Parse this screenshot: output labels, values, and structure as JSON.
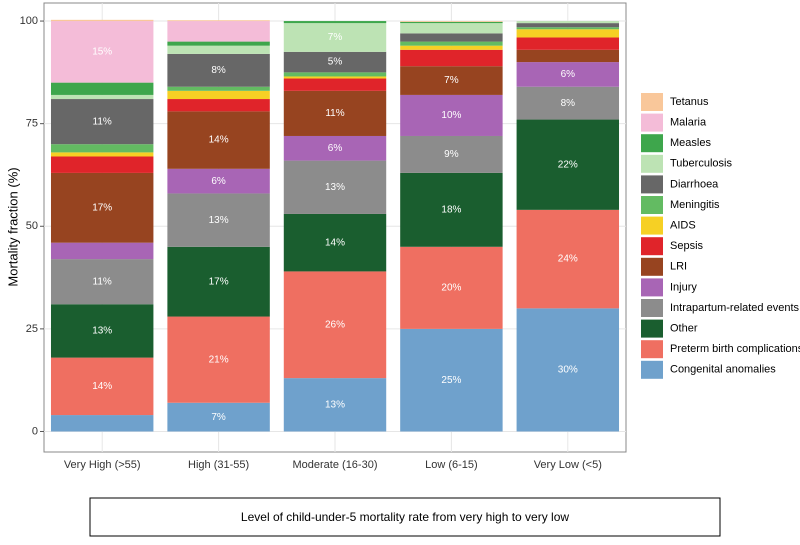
{
  "chart_data": {
    "type": "stacked_bar",
    "y_label": "Mortality fraction (%)",
    "x_label": "Level of child-under-5 mortality rate from very high to very low",
    "categories": [
      "Very High (>55)",
      "High (31-55)",
      "Moderate (16-30)",
      "Low (6-15)",
      "Very Low (<5)"
    ],
    "ylim": [
      -5,
      104.4
    ],
    "yticks": [
      0,
      25,
      50,
      75,
      100
    ],
    "grid": true,
    "legend": "right",
    "series": [
      {
        "name": "Congenital anomalies",
        "color": "#6fa1cc",
        "values": [
          4,
          7,
          13,
          25,
          30
        ],
        "value_labels": [
          null,
          "7%",
          "13%",
          "25%",
          "30%"
        ]
      },
      {
        "name": "Preterm birth complications",
        "color": "#ef6f61",
        "values": [
          14,
          21,
          26,
          20,
          24
        ],
        "value_labels": [
          "14%",
          "21%",
          "26%",
          "20%",
          "24%"
        ]
      },
      {
        "name": "Other",
        "color": "#1a5e2f",
        "values": [
          13,
          17,
          14,
          18,
          22
        ],
        "value_labels": [
          "13%",
          "17%",
          "14%",
          "18%",
          "22%"
        ]
      },
      {
        "name": "Intrapartum-related events",
        "color": "#8c8c8c",
        "values": [
          11,
          13,
          13,
          9,
          8
        ],
        "value_labels": [
          "11%",
          "13%",
          "13%",
          "9%",
          "8%"
        ]
      },
      {
        "name": "Injury",
        "color": "#a865b5",
        "values": [
          4,
          6,
          6,
          10,
          6
        ],
        "value_labels": [
          null,
          "6%",
          "6%",
          "10%",
          "6%"
        ]
      },
      {
        "name": "LRI",
        "color": "#974420",
        "values": [
          17,
          14,
          11,
          7,
          3
        ],
        "value_labels": [
          "17%",
          "14%",
          "11%",
          "7%",
          null
        ]
      },
      {
        "name": "Sepsis",
        "color": "#e0242a",
        "values": [
          4,
          3,
          3,
          4,
          3
        ],
        "value_labels": [
          null,
          null,
          null,
          null,
          null
        ]
      },
      {
        "name": "AIDS",
        "color": "#f6d024",
        "values": [
          1,
          2,
          0.5,
          1,
          2
        ],
        "value_labels": [
          null,
          null,
          null,
          null,
          null
        ]
      },
      {
        "name": "Meningitis",
        "color": "#63bb62",
        "values": [
          2,
          1,
          1,
          1,
          0.5
        ],
        "value_labels": [
          null,
          null,
          null,
          null,
          null
        ]
      },
      {
        "name": "Diarrhoea",
        "color": "#676767",
        "values": [
          11,
          8,
          5,
          2,
          1
        ],
        "value_labels": [
          "11%",
          "8%",
          "5%",
          null,
          null
        ]
      },
      {
        "name": "Tuberculosis",
        "color": "#bde3b4",
        "values": [
          1,
          2,
          7,
          2.5,
          0.5
        ],
        "value_labels": [
          null,
          null,
          "7%",
          null,
          null
        ]
      },
      {
        "name": "Measles",
        "color": "#3ea64c",
        "values": [
          3,
          1,
          0.5,
          0.3,
          0
        ],
        "value_labels": [
          null,
          null,
          null,
          null,
          null
        ]
      },
      {
        "name": "Malaria",
        "color": "#f4bcd8",
        "values": [
          15,
          5,
          0,
          0,
          0
        ],
        "value_labels": [
          "15%",
          null,
          null,
          null,
          null
        ]
      },
      {
        "name": "Tetanus",
        "color": "#f9c79a",
        "values": [
          0.3,
          0.2,
          0,
          0.2,
          0
        ],
        "value_labels": [
          null,
          null,
          null,
          null,
          null
        ]
      }
    ]
  }
}
